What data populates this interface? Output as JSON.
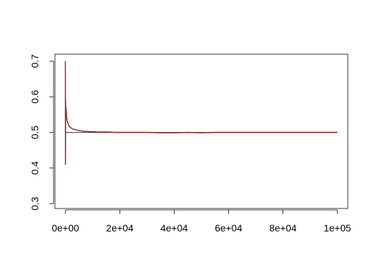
{
  "chart_data": {
    "type": "line",
    "title": "",
    "xlabel": "",
    "ylabel": "",
    "xlim": [
      0,
      100000
    ],
    "ylim": [
      0.3,
      0.7
    ],
    "x_ticks": [
      0,
      20000,
      40000,
      60000,
      80000,
      100000
    ],
    "x_tick_labels": [
      "0e+00",
      "2e+04",
      "4e+04",
      "6e+04",
      "8e+04",
      "1e+05"
    ],
    "y_ticks": [
      0.3,
      0.4,
      0.5,
      0.6,
      0.7
    ],
    "y_tick_labels": [
      "0.3",
      "0.4",
      "0.5",
      "0.6",
      "0.7"
    ],
    "grid": false,
    "reference_line": {
      "type": "horizontal",
      "y": 0.5,
      "color": "#000000"
    },
    "series": [
      {
        "color": "#8B1A1A",
        "x": [
          0,
          50,
          100,
          150,
          200,
          300,
          400,
          500,
          700,
          900,
          1200,
          1600,
          2000,
          2500,
          3000,
          4000,
          5000,
          6000,
          7000,
          8000,
          9000,
          10000,
          12000,
          14000,
          16000,
          18000,
          20000,
          25000,
          30000,
          35000,
          40000,
          45000,
          50000,
          55000,
          60000,
          65000,
          70000,
          75000,
          80000,
          85000,
          90000,
          95000,
          100000
        ],
        "y": [
          0.7,
          0.41,
          0.59,
          0.55,
          0.57,
          0.56,
          0.545,
          0.54,
          0.53,
          0.527,
          0.52,
          0.516,
          0.513,
          0.51,
          0.509,
          0.507,
          0.505,
          0.504,
          0.503,
          0.503,
          0.502,
          0.502,
          0.501,
          0.501,
          0.501,
          0.5,
          0.5,
          0.5,
          0.5,
          0.499,
          0.499,
          0.5,
          0.499,
          0.5,
          0.5,
          0.5,
          0.5,
          0.5,
          0.5,
          0.5,
          0.5,
          0.5,
          0.5
        ]
      }
    ]
  }
}
